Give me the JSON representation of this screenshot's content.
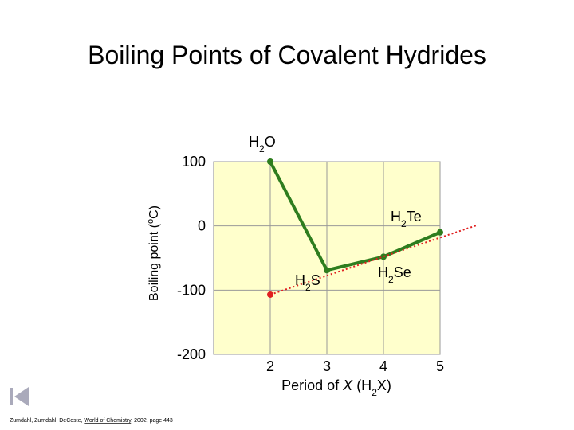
{
  "chart_data": {
    "type": "line",
    "title": "Boiling Points of Covalent Hydrides",
    "ylabel": [
      "Boiling point (",
      "o",
      "C)"
    ],
    "xlabel": [
      "Period of ",
      "X",
      " (H",
      "2",
      "X)"
    ],
    "x": [
      2,
      3,
      4,
      5
    ],
    "series": [
      {
        "color": "#2e7d1e",
        "values": [
          100,
          -69,
          -48,
          -10
        ]
      },
      {
        "color": "#e02020",
        "x": [
          2,
          5.65
        ],
        "values": [
          -107,
          1
        ],
        "style": "dotted"
      }
    ],
    "annotations": [
      [
        "H",
        "2",
        "O"
      ],
      [
        "H",
        "2",
        "S"
      ],
      [
        "H",
        "2",
        "Se"
      ],
      [
        "H",
        "2",
        "Te"
      ]
    ],
    "xlim": [
      1,
      5
    ],
    "ylim": [
      -200,
      100
    ],
    "xticks": [
      2,
      3,
      4,
      5
    ],
    "yticks": [
      -200,
      -100,
      0,
      100
    ],
    "grid": true,
    "background": "#ffffcc",
    "citation": [
      "Zumdahl, Zumdahl, DeCoste, ",
      "World of Chemistry",
      ", 2002, page 443"
    ]
  }
}
